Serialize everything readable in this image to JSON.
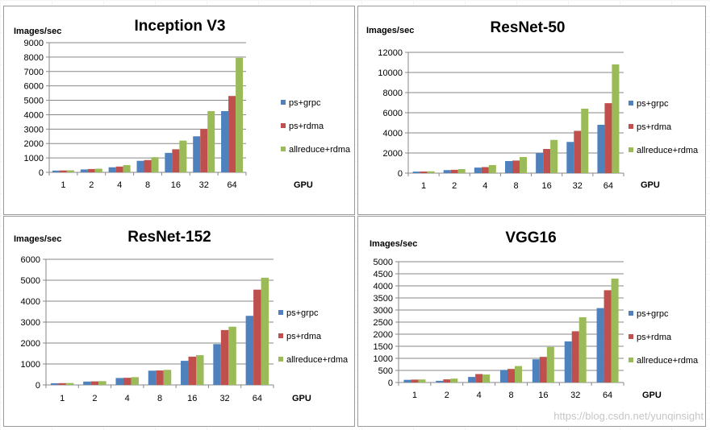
{
  "watermark": "https://blog.csdn.net/yunqinsight",
  "colors": {
    "ps_grpc": "#4f81bd",
    "ps_rdma": "#c0504d",
    "allreduce_rdma": "#9bbb59",
    "grid": "#878787",
    "axis": "#878787"
  },
  "chart_data": [
    {
      "type": "bar",
      "title": "Inception V3",
      "ylabel": "Images/sec",
      "xlabel": "GPU",
      "categories": [
        "1",
        "2",
        "4",
        "8",
        "16",
        "32",
        "64"
      ],
      "ylim": [
        0,
        9000
      ],
      "yticks": [
        "0",
        "1000",
        "2000",
        "3000",
        "4000",
        "5000",
        "6000",
        "7000",
        "8000",
        "9000"
      ],
      "legend_position": "right",
      "series": [
        {
          "name": "ps+grpc",
          "values": [
            120,
            200,
            350,
            800,
            1350,
            2500,
            4250
          ]
        },
        {
          "name": "ps+rdma",
          "values": [
            130,
            230,
            400,
            850,
            1600,
            3000,
            5300
          ]
        },
        {
          "name": "allreduce+rdma",
          "values": [
            140,
            250,
            500,
            1050,
            2200,
            4250,
            7950
          ]
        }
      ]
    },
    {
      "type": "bar",
      "title": "ResNet-50",
      "ylabel": "Images/sec",
      "xlabel": "GPU",
      "categories": [
        "1",
        "2",
        "4",
        "8",
        "16",
        "32",
        "64"
      ],
      "ylim": [
        0,
        12000
      ],
      "yticks": [
        "0",
        "2000",
        "4000",
        "6000",
        "8000",
        "10000",
        "12000"
      ],
      "legend_position": "right",
      "series": [
        {
          "name": "ps+grpc",
          "values": [
            150,
            300,
            550,
            1200,
            2000,
            3100,
            4800
          ]
        },
        {
          "name": "ps+rdma",
          "values": [
            160,
            330,
            600,
            1250,
            2400,
            4200,
            6950
          ]
        },
        {
          "name": "allreduce+rdma",
          "values": [
            180,
            400,
            800,
            1600,
            3300,
            6400,
            10800
          ]
        }
      ]
    },
    {
      "type": "bar",
      "title": "ResNet-152",
      "ylabel": "Images/sec",
      "xlabel": "GPU",
      "categories": [
        "1",
        "2",
        "4",
        "8",
        "16",
        "32",
        "64"
      ],
      "ylim": [
        0,
        6000
      ],
      "yticks": [
        "0",
        "1000",
        "2000",
        "3000",
        "4000",
        "5000",
        "6000"
      ],
      "legend_position": "right",
      "series": [
        {
          "name": "ps+grpc",
          "values": [
            80,
            160,
            330,
            680,
            1150,
            1950,
            3300
          ]
        },
        {
          "name": "ps+rdma",
          "values": [
            85,
            170,
            340,
            690,
            1350,
            2620,
            4550
          ]
        },
        {
          "name": "allreduce+rdma",
          "values": [
            90,
            180,
            370,
            720,
            1420,
            2780,
            5120
          ]
        }
      ]
    },
    {
      "type": "bar",
      "title": "VGG16",
      "ylabel": "Images/sec",
      "xlabel": "GPU",
      "categories": [
        "1",
        "2",
        "4",
        "8",
        "16",
        "32",
        "64"
      ],
      "ylim": [
        0,
        5000
      ],
      "yticks": [
        "0",
        "500",
        "1000",
        "1500",
        "2000",
        "2500",
        "3000",
        "3500",
        "4000",
        "4500",
        "5000"
      ],
      "legend_position": "right",
      "series": [
        {
          "name": "ps+grpc",
          "values": [
            110,
            70,
            230,
            520,
            960,
            1700,
            3080
          ]
        },
        {
          "name": "ps+rdma",
          "values": [
            120,
            130,
            350,
            560,
            1060,
            2120,
            3820
          ]
        },
        {
          "name": "allreduce+rdma",
          "values": [
            125,
            160,
            330,
            680,
            1470,
            2700,
            4300
          ]
        }
      ]
    }
  ]
}
